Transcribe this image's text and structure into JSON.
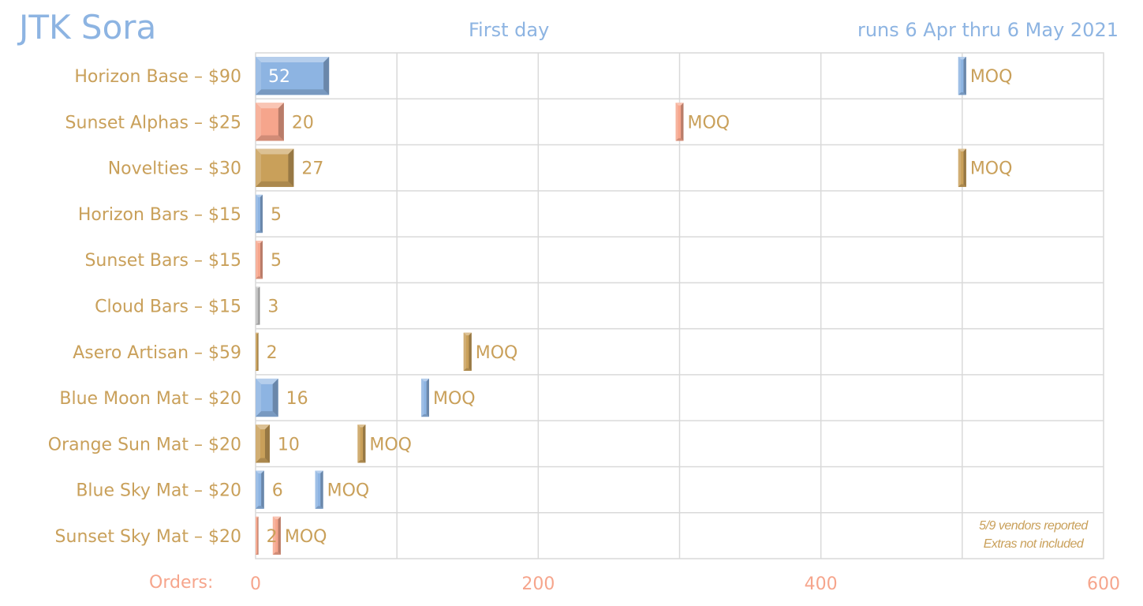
{
  "header": {
    "title": "JTK Sora",
    "subtitle": "First day",
    "dates": "runs 6 Apr thru 6 May 2021"
  },
  "footnotes": [
    "5/9 vendors reported",
    "Extras not included"
  ],
  "axis_title": "Orders:",
  "colors": {
    "blue": "#8db4e2",
    "salmon": "#f6a58c",
    "gold": "#c9a05a",
    "silver": "#bfbfbf"
  },
  "chart_data": {
    "type": "bar",
    "orientation": "horizontal",
    "xlim": [
      0,
      600
    ],
    "xticks": [
      0,
      200,
      400,
      600
    ],
    "grid": true,
    "marker_label": "MOQ",
    "categories": [
      "Horizon Base – $90",
      "Sunset Alphas – $25",
      "Novelties – $30",
      "Horizon Bars – $15",
      "Sunset Bars – $15",
      "Cloud Bars – $15",
      "Asero Artisan – $59",
      "Blue Moon Mat – $20",
      "Orange Sun Mat – $20",
      "Blue Sky Mat – $20",
      "Sunset Sky Mat – $20"
    ],
    "values": [
      52,
      20,
      27,
      5,
      5,
      3,
      2,
      16,
      10,
      6,
      2
    ],
    "moq": [
      500,
      300,
      500,
      null,
      null,
      null,
      150,
      120,
      75,
      45,
      15
    ],
    "bar_colors": [
      "blue",
      "salmon",
      "gold",
      "blue",
      "salmon",
      "silver",
      "gold",
      "blue",
      "gold",
      "blue",
      "salmon"
    ]
  }
}
